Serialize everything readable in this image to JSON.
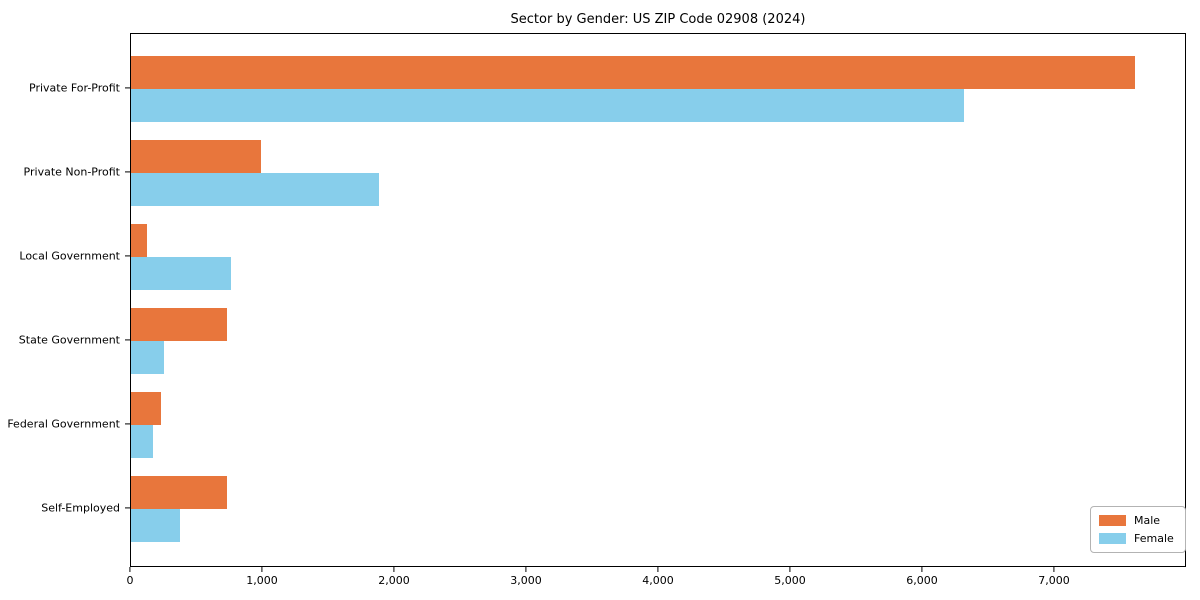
{
  "title": "Sector by Gender: US ZIP Code 02908 (2024)",
  "colors": {
    "male": "#E8763C",
    "female": "#87CEEB",
    "axis": "#000000",
    "legend_border": "#b3b3b3",
    "background": "#ffffff"
  },
  "chart_data": {
    "type": "bar",
    "orientation": "horizontal",
    "title": "Sector by Gender: US ZIP Code 02908 (2024)",
    "categories": [
      "Private For-Profit",
      "Private Non-Profit",
      "Local Government",
      "State Government",
      "Federal Government",
      "Self-Employed"
    ],
    "series": [
      {
        "name": "Male",
        "color": "#E8763C",
        "values": [
          7620,
          990,
          120,
          730,
          230,
          730
        ]
      },
      {
        "name": "Female",
        "color": "#87CEEB",
        "values": [
          6320,
          1880,
          760,
          250,
          170,
          370
        ]
      }
    ],
    "xlabel": "",
    "ylabel": "",
    "xlim": [
      0,
      8000
    ],
    "x_tick_values": [
      0,
      1000,
      2000,
      3000,
      4000,
      5000,
      6000,
      7000
    ],
    "x_tick_labels": [
      "0",
      "1,000",
      "2,000",
      "3,000",
      "4,000",
      "5,000",
      "6,000",
      "7,000"
    ],
    "grid": false,
    "legend": {
      "position": "lower right",
      "entries": [
        "Male",
        "Female"
      ]
    }
  }
}
